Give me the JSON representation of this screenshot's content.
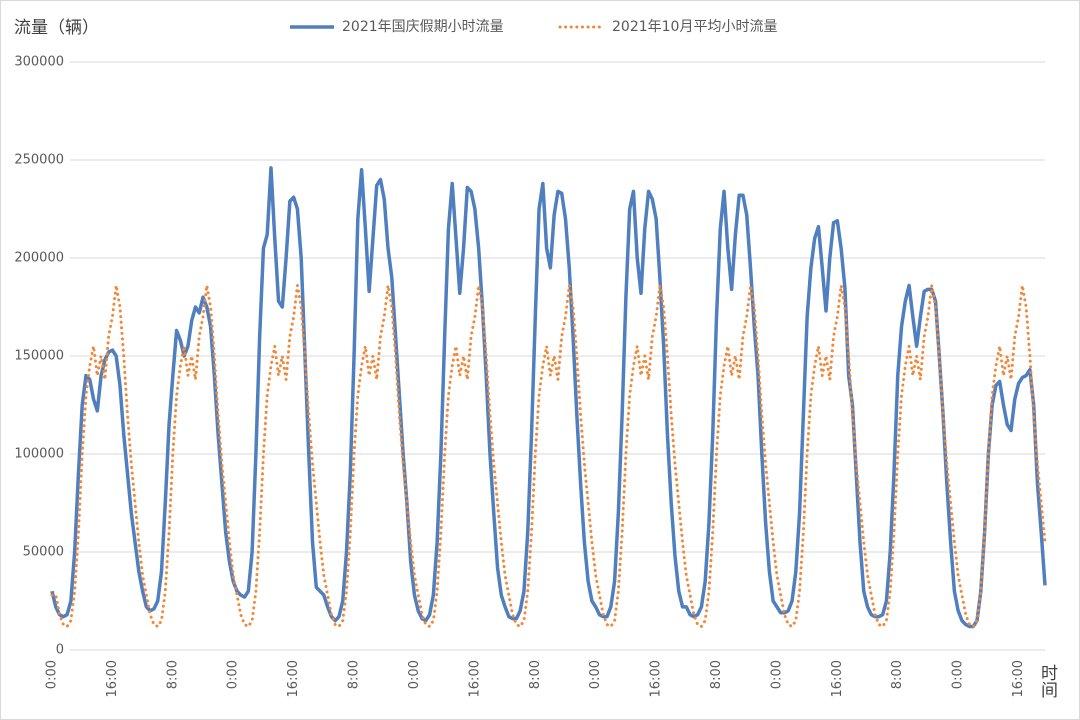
{
  "chart_data": {
    "type": "line",
    "y_label": "流量（辆）",
    "x_label": "时间",
    "categories": [
      "0:00",
      null,
      null,
      null,
      null,
      null,
      null,
      null,
      null,
      null,
      null,
      null,
      null,
      null,
      null,
      null,
      "16:00",
      null,
      null,
      null,
      null,
      null,
      null,
      null,
      null,
      null,
      null,
      null,
      null,
      null,
      null,
      null,
      "8:00",
      null,
      null,
      null,
      null,
      null,
      null,
      null,
      null,
      null,
      null,
      null,
      null,
      null,
      null,
      null,
      "0:00",
      null,
      null,
      null,
      null,
      null,
      null,
      null,
      null,
      null,
      null,
      null,
      null,
      null,
      null,
      null,
      "16:00",
      null,
      null,
      null,
      null,
      null,
      null,
      null,
      null,
      null,
      null,
      null,
      null,
      null,
      null,
      null,
      "8:00",
      null,
      null,
      null,
      null,
      null,
      null,
      null,
      null,
      null,
      null,
      null,
      null,
      null,
      null,
      null,
      "0:00",
      null,
      null,
      null,
      null,
      null,
      null,
      null,
      null,
      null,
      null,
      null,
      null,
      null,
      null,
      null,
      "16:00",
      null,
      null,
      null,
      null,
      null,
      null,
      null,
      null,
      null,
      null,
      null,
      null,
      null,
      null,
      null,
      "8:00",
      null,
      null,
      null,
      null,
      null,
      null,
      null,
      null,
      null,
      null,
      null,
      null,
      null,
      null,
      null,
      "0:00",
      null,
      null,
      null,
      null,
      null,
      null,
      null,
      null,
      null,
      null,
      null,
      null,
      null,
      null,
      null,
      "16:00",
      null,
      null,
      null,
      null,
      null,
      null,
      null,
      null,
      null,
      null,
      null,
      null,
      null,
      null,
      null,
      "8:00",
      null,
      null,
      null,
      null,
      null,
      null,
      null,
      null,
      null,
      null,
      null,
      null,
      null,
      null,
      null,
      "0:00",
      null,
      null,
      null,
      null,
      null,
      null,
      null,
      null,
      null,
      null,
      null,
      null,
      null,
      null,
      null,
      "16:00",
      null,
      null,
      null,
      null,
      null,
      null,
      null,
      null,
      null,
      null,
      null,
      null,
      null,
      null,
      null,
      "8:00",
      null,
      null,
      null,
      null,
      null,
      null,
      null,
      null,
      null,
      null,
      null,
      null,
      null,
      null,
      null,
      "0:00",
      null,
      null,
      null,
      null,
      null,
      null,
      null,
      null,
      null,
      null,
      null,
      null,
      null,
      null,
      null,
      "16:00",
      null,
      null,
      null,
      null,
      null,
      null,
      null
    ],
    "series": [
      {
        "name": "2021年国庆假期小时流量",
        "color": "#4f7fbf",
        "style": "solid",
        "values": [
          30000,
          22000,
          18000,
          17000,
          18000,
          25000,
          50000,
          90000,
          125000,
          140000,
          138000,
          128000,
          122000,
          140000,
          148000,
          152000,
          153000,
          150000,
          135000,
          110000,
          90000,
          70000,
          55000,
          40000,
          30000,
          22000,
          20000,
          21000,
          25000,
          40000,
          75000,
          115000,
          140000,
          163000,
          158000,
          150000,
          155000,
          168000,
          175000,
          172000,
          180000,
          175000,
          165000,
          140000,
          110000,
          85000,
          60000,
          45000,
          35000,
          30000,
          28000,
          27000,
          30000,
          50000,
          100000,
          160000,
          205000,
          212000,
          246000,
          210000,
          178000,
          175000,
          200000,
          229000,
          231000,
          225000,
          200000,
          150000,
          100000,
          55000,
          32000,
          30000,
          28000,
          22000,
          17000,
          15000,
          17000,
          25000,
          50000,
          90000,
          150000,
          220000,
          245000,
          215000,
          183000,
          210000,
          237000,
          240000,
          230000,
          205000,
          190000,
          160000,
          130000,
          100000,
          75000,
          45000,
          28000,
          20000,
          16000,
          15000,
          18000,
          28000,
          55000,
          100000,
          160000,
          215000,
          238000,
          210000,
          182000,
          205000,
          236000,
          234000,
          225000,
          205000,
          175000,
          140000,
          100000,
          70000,
          42000,
          28000,
          22000,
          17000,
          16000,
          16000,
          20000,
          30000,
          60000,
          110000,
          170000,
          225000,
          238000,
          205000,
          195000,
          222000,
          234000,
          233000,
          220000,
          195000,
          160000,
          120000,
          85000,
          55000,
          35000,
          25000,
          22000,
          18000,
          17000,
          17000,
          22000,
          35000,
          70000,
          120000,
          180000,
          225000,
          234000,
          200000,
          182000,
          215000,
          234000,
          230000,
          220000,
          190000,
          155000,
          110000,
          75000,
          48000,
          30000,
          22000,
          22000,
          18000,
          17000,
          18000,
          22000,
          35000,
          65000,
          110000,
          170000,
          215000,
          234000,
          205000,
          184000,
          212000,
          232000,
          232000,
          222000,
          195000,
          165000,
          140000,
          100000,
          65000,
          40000,
          25000,
          22000,
          19000,
          19000,
          20000,
          25000,
          40000,
          70000,
          120000,
          170000,
          195000,
          210000,
          216000,
          195000,
          173000,
          200000,
          218000,
          219000,
          205000,
          185000,
          140000,
          125000,
          90000,
          55000,
          30000,
          22000,
          18000,
          17000,
          17000,
          18000,
          25000,
          50000,
          90000,
          140000,
          165000,
          178000,
          186000,
          170000,
          155000,
          170000,
          183000,
          184000,
          184000,
          178000,
          150000,
          120000,
          85000,
          55000,
          30000,
          20000,
          15000,
          13000,
          12000,
          12000,
          15000,
          30000,
          60000,
          100000,
          125000,
          135000,
          137000,
          125000,
          115000,
          112000,
          128000,
          136000,
          139000,
          140000,
          143000,
          125000,
          85000,
          60000,
          33000
        ]
      },
      {
        "name": "2021年10月平均小时流量",
        "color": "#f0883a",
        "style": "dotted",
        "values": [
          28000,
          28000,
          18000,
          13000,
          12000,
          15000,
          30000,
          60000,
          100000,
          130000,
          145000,
          155000,
          140000,
          150000,
          138000,
          160000,
          170000,
          186000,
          175000,
          150000,
          120000,
          95000,
          75000,
          55000,
          38000,
          28000,
          18000,
          13000,
          12000,
          15000,
          30000,
          60000,
          100000,
          130000,
          145000,
          155000,
          140000,
          150000,
          138000,
          160000,
          170000,
          186000,
          175000,
          150000,
          120000,
          95000,
          75000,
          55000,
          38000,
          28000,
          18000,
          13000,
          12000,
          15000,
          30000,
          60000,
          100000,
          130000,
          145000,
          155000,
          140000,
          150000,
          138000,
          160000,
          170000,
          186000,
          175000,
          150000,
          120000,
          95000,
          75000,
          55000,
          38000,
          28000,
          18000,
          13000,
          12000,
          15000,
          30000,
          60000,
          100000,
          130000,
          145000,
          155000,
          140000,
          150000,
          138000,
          160000,
          170000,
          186000,
          175000,
          150000,
          120000,
          95000,
          75000,
          55000,
          38000,
          28000,
          18000,
          13000,
          12000,
          15000,
          30000,
          60000,
          100000,
          130000,
          145000,
          155000,
          140000,
          150000,
          138000,
          160000,
          170000,
          186000,
          175000,
          150000,
          120000,
          95000,
          75000,
          55000,
          38000,
          28000,
          18000,
          13000,
          12000,
          15000,
          30000,
          60000,
          100000,
          130000,
          145000,
          155000,
          140000,
          150000,
          138000,
          160000,
          170000,
          186000,
          175000,
          150000,
          120000,
          95000,
          75000,
          55000,
          38000,
          28000,
          18000,
          13000,
          12000,
          15000,
          30000,
          60000,
          100000,
          130000,
          145000,
          155000,
          140000,
          150000,
          138000,
          160000,
          170000,
          186000,
          175000,
          150000,
          120000,
          95000,
          75000,
          55000,
          38000,
          28000,
          18000,
          13000,
          12000,
          15000,
          30000,
          60000,
          100000,
          130000,
          145000,
          155000,
          140000,
          150000,
          138000,
          160000,
          170000,
          186000,
          175000,
          150000,
          120000,
          95000,
          75000,
          55000,
          38000,
          28000,
          18000,
          13000,
          12000,
          15000,
          30000,
          60000,
          100000,
          130000,
          145000,
          155000,
          140000,
          150000,
          138000,
          160000,
          170000,
          186000,
          175000,
          150000,
          120000,
          95000,
          75000,
          55000,
          38000,
          28000,
          18000,
          13000,
          12000,
          15000,
          30000,
          60000,
          100000,
          130000,
          145000,
          155000,
          140000,
          150000,
          138000,
          160000,
          170000,
          186000,
          175000,
          150000,
          120000,
          95000,
          75000,
          55000,
          38000,
          28000,
          18000,
          13000,
          12000,
          15000,
          30000,
          60000,
          100000,
          130000,
          145000,
          155000,
          140000,
          150000,
          138000,
          160000,
          170000,
          186000,
          175000,
          150000,
          120000,
          95000,
          75000,
          55000
        ]
      }
    ],
    "ylim": [
      0,
      300000
    ],
    "yticks": [
      0,
      50000,
      100000,
      150000,
      200000,
      250000,
      300000
    ],
    "grid": true,
    "legend": "top"
  }
}
